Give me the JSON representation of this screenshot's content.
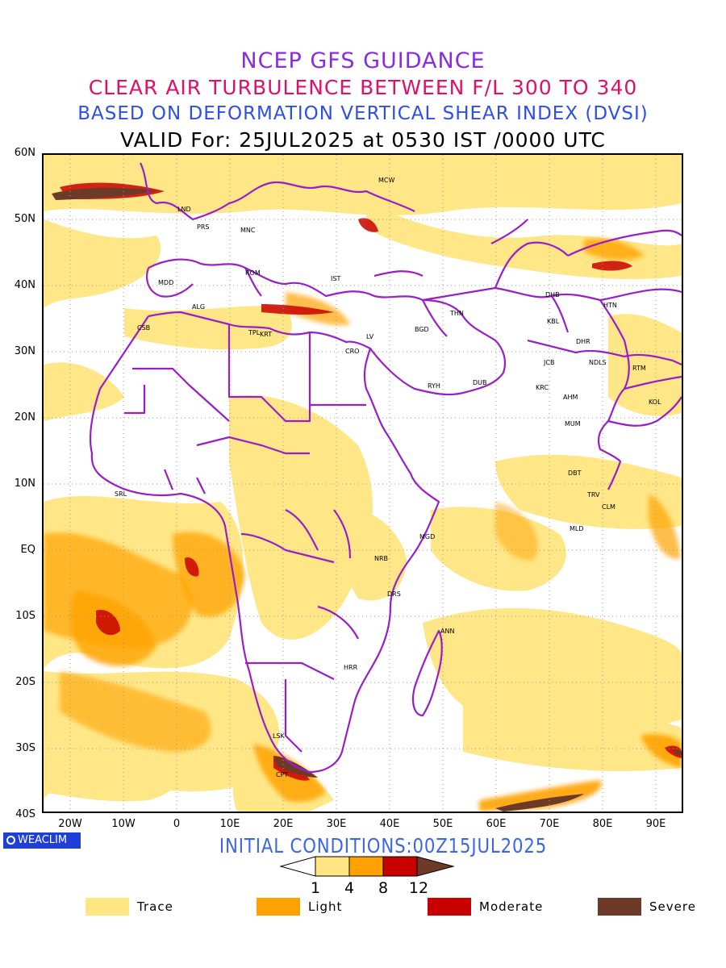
{
  "titles": {
    "line1": "NCEP GFS GUIDANCE",
    "line2": "CLEAR AIR TURBULENCE BETWEEN F/L 300 TO 340",
    "line3": "BASED ON DEFORMATION VERTICAL SHEAR INDEX (DVSI)",
    "line4": "VALID For: 25JUL2025 at 0530 IST /0000 UTC"
  },
  "colors": {
    "line1": "#8a2be2",
    "line2": "#e0106a",
    "line3": "#2d4fe6",
    "boundary": "#9a1ec8",
    "trace": "#ffe682",
    "light": "#ffa200",
    "moderate": "#c80000",
    "severe": "#6e3a28"
  },
  "axes": {
    "lat_labels": [
      "60N",
      "50N",
      "40N",
      "30N",
      "20N",
      "10N",
      "EQ",
      "10S",
      "20S",
      "30S",
      "40S"
    ],
    "lon_labels": [
      "20W",
      "10W",
      "0",
      "10E",
      "20E",
      "30E",
      "40E",
      "50E",
      "60E",
      "70E",
      "80E",
      "90E"
    ]
  },
  "stations": [
    "MCW",
    "LND",
    "PRS",
    "MNC",
    "ROM",
    "MDD",
    "IST",
    "ALG",
    "CSB",
    "TPL",
    "KRT",
    "CRO",
    "LV",
    "BGD",
    "THN",
    "RYH",
    "DUB",
    "DHB",
    "HTN",
    "KBL",
    "DHR",
    "JCB",
    "NDLS",
    "RTM",
    "KRC",
    "AHM",
    "KOL",
    "MUM",
    "DBT",
    "TRV",
    "CLM",
    "MLD",
    "SRL",
    "MGD",
    "NRB",
    "DRS",
    "ANN",
    "HRR",
    "LSK",
    "CPT"
  ],
  "footer": {
    "badge": "WEACLIM",
    "init": "INITIAL CONDITIONS:00Z15JUL2025"
  },
  "colorbar": {
    "ticks": [
      "1",
      "4",
      "8",
      "12"
    ]
  },
  "legend": [
    {
      "label": "Trace",
      "color": "#ffe682"
    },
    {
      "label": "Light",
      "color": "#ffa200"
    },
    {
      "label": "Moderate",
      "color": "#c80000"
    },
    {
      "label": "Severe",
      "color": "#6e3a28"
    }
  ]
}
